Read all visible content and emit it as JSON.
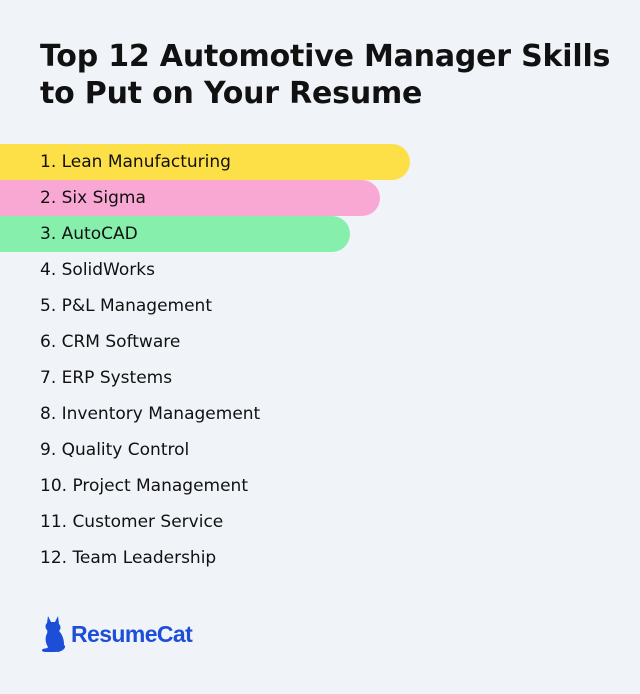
{
  "title": "Top 12 Automotive Manager Skills to Put on Your Resume",
  "skills": [
    {
      "label": "1. Lean Manufacturing",
      "highlight": "#fde047"
    },
    {
      "label": "2. Six Sigma",
      "highlight": "#f9a8d4"
    },
    {
      "label": "3. AutoCAD",
      "highlight": "#86efac"
    },
    {
      "label": "4. SolidWorks"
    },
    {
      "label": "5. P&L Management"
    },
    {
      "label": "6. CRM Software"
    },
    {
      "label": "7. ERP Systems"
    },
    {
      "label": "8. Inventory Management"
    },
    {
      "label": "9. Quality Control"
    },
    {
      "label": "10. Project Management"
    },
    {
      "label": "11. Customer Service"
    },
    {
      "label": "12. Team Leadership"
    }
  ],
  "brand": {
    "name": "ResumeCat",
    "icon": "cat-logo-icon",
    "color": "#1d4ed8"
  },
  "colors": {
    "background": "#f0f3f8",
    "text": "#111111"
  }
}
